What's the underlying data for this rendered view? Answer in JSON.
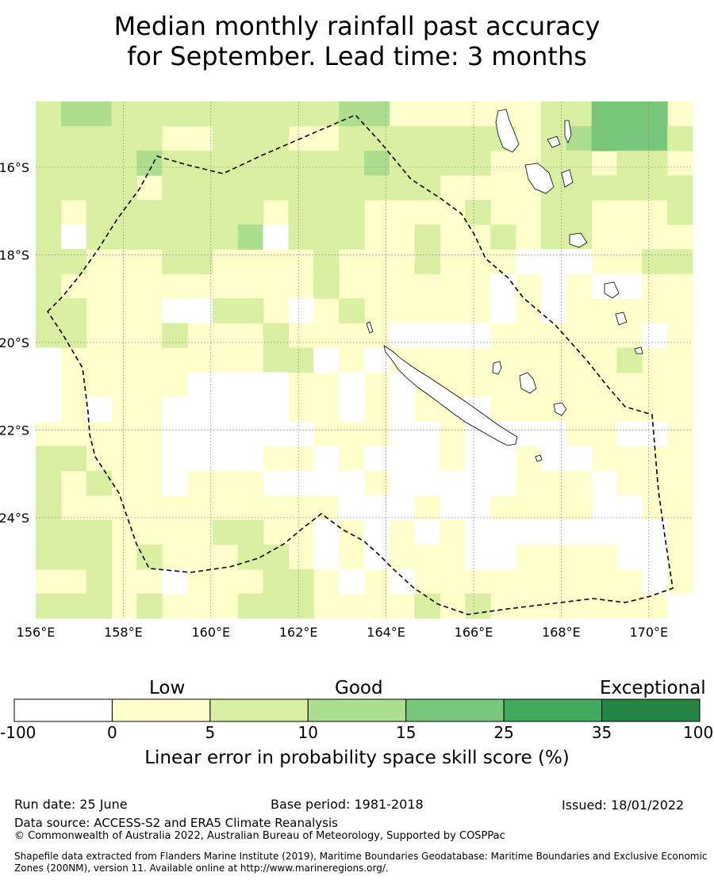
{
  "title": {
    "line1": "Median monthly rainfall past accuracy",
    "line2": "for September. Lead time: 3 months"
  },
  "map": {
    "lat_labels": [
      "16°S",
      "18°S",
      "20°S",
      "22°S",
      "24°S"
    ],
    "lon_labels": [
      "156°E",
      "158°E",
      "160°E",
      "162°E",
      "164°E",
      "166°E",
      "168°E",
      "170°E"
    ],
    "lon_range": [
      156,
      171
    ],
    "lat_range": [
      -14.5,
      -26.3
    ],
    "boundary_note": "dashed maritime boundary (EEZ)",
    "category_colors": [
      "#ffffff",
      "#ffffcc",
      "#d9f0a3",
      "#addd8e",
      "#78c679",
      "#41ab5d",
      "#238443"
    ]
  },
  "colorbar": {
    "headings": {
      "low": "Low",
      "good": "Good",
      "exceptional": "Exceptional"
    },
    "ticks": [
      "-100",
      "0",
      "5",
      "10",
      "15",
      "25",
      "35",
      "100"
    ],
    "label": "Linear error in probability space skill score (%)"
  },
  "footer": {
    "run_date": "Run date: 25 June",
    "base_period": "Base period: 1981-2018",
    "issued": "Issued: 18/01/2022",
    "data_source": "Data source: ACCESS-S2 and ERA5 Climate Reanalysis",
    "copyright": "© Commonwealth of Australia 2022, Australian Bureau of Meteorology, Supported by COSPPac",
    "shapefile_line1": "Shapefile data extracted from Flanders Marine Institute (2019), Maritime Boundaries Geodatabase: Maritime Boundaries and Exclusive Economic",
    "shapefile_line2": "Zones (200NM), version 11. Available online at http://www.marineregions.org/."
  }
}
